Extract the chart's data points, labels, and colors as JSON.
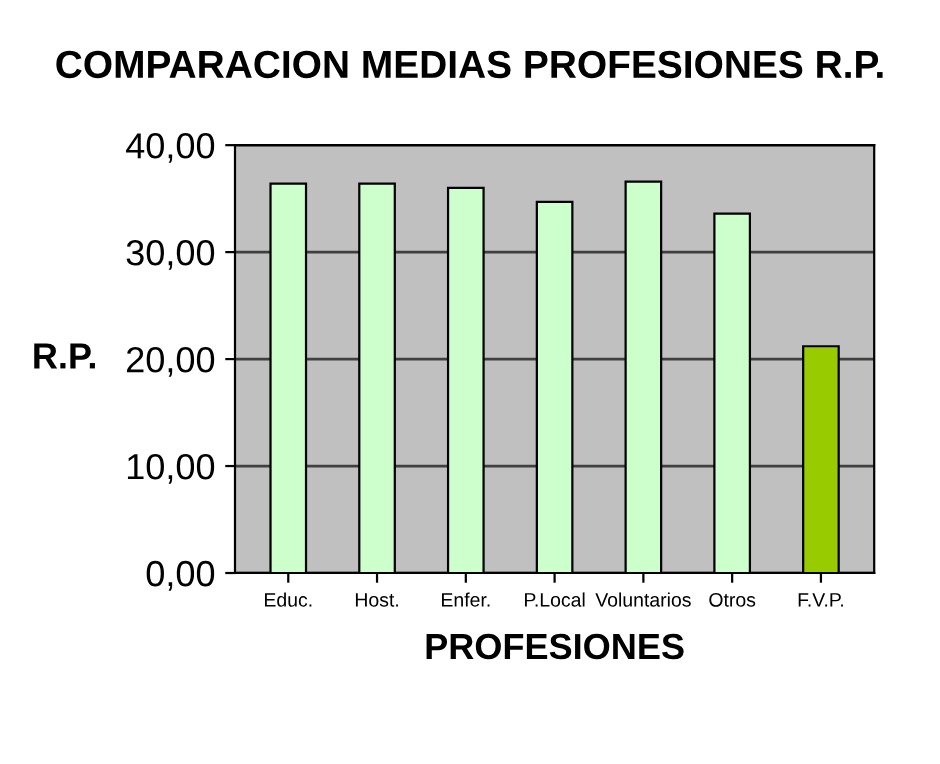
{
  "chart_data": {
    "type": "bar",
    "title": "COMPARACION MEDIAS PROFESIONES R.P.",
    "xlabel": "PROFESIONES",
    "ylabel": "R.P.",
    "categories": [
      "Educ.",
      "Host.",
      "Enfer.",
      "P.Local",
      "Voluntarios",
      "Otros",
      "F.V.P."
    ],
    "values": [
      36.4,
      36.4,
      36.0,
      34.7,
      36.6,
      33.6,
      21.2
    ],
    "colors": [
      "#ccffcc",
      "#ccffcc",
      "#ccffcc",
      "#ccffcc",
      "#ccffcc",
      "#ccffcc",
      "#99cc00"
    ],
    "ylim": [
      0,
      40
    ],
    "yticks": [
      {
        "value": 0,
        "label": "0,00"
      },
      {
        "value": 10,
        "label": "10,00"
      },
      {
        "value": 20,
        "label": "20,00"
      },
      {
        "value": 30,
        "label": "30,00"
      },
      {
        "value": 40,
        "label": "40,00"
      }
    ],
    "grid": "y"
  }
}
